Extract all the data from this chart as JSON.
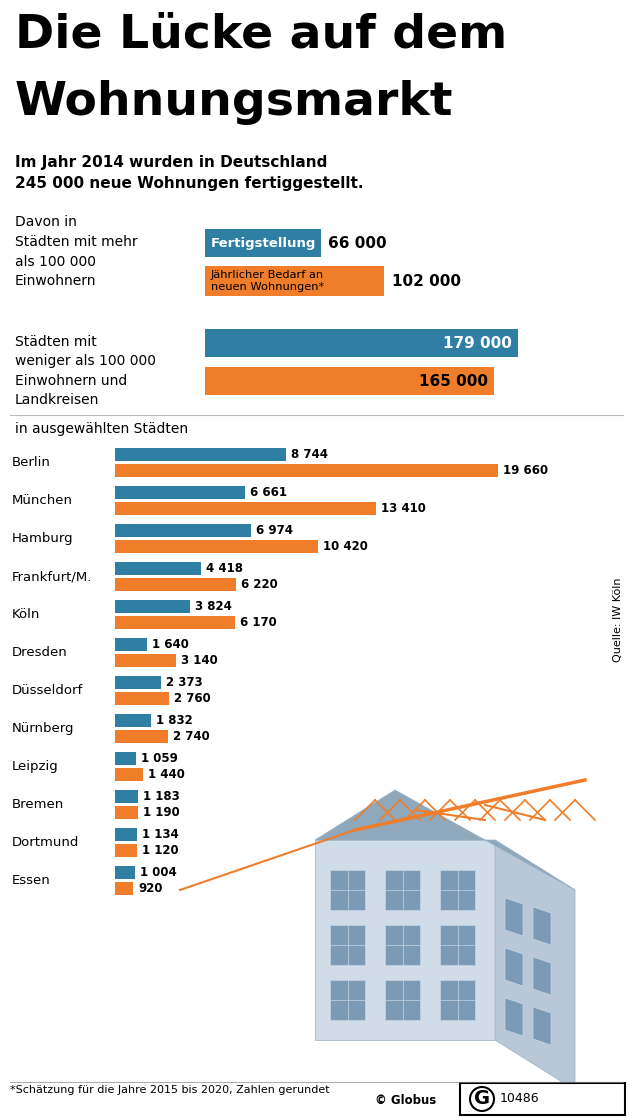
{
  "title_line1": "Die Lücke auf dem",
  "title_line2": "Wohnungsmarkt",
  "subtitle": "Im Jahr 2014 wurden in Deutschland\n245 000 neue Wohnungen fertiggestellt.",
  "davon_in": "Davon in",
  "in_staedte": "in ausgewählten Städten",
  "color_blue": "#2e7fa3",
  "color_orange": "#f07d2a",
  "color_white": "#ffffff",
  "color_bg": "#ffffff",
  "color_black": "#1a1a1a",
  "color_gray": "#888888",
  "color_light_gray": "#cccccc",
  "label_fertigstellung": "Fertigstellung",
  "label_bedarf": "Jährlicher Bedarf an\nneuen Wohnungen*",
  "group1_label": "Städten mit mehr\nals 100 000\nEinwohnern",
  "group1_blue": 66000,
  "group1_blue_text": "66 000",
  "group1_orange": 102000,
  "group1_orange_text": "102 000",
  "group2_label": "Städten mit\nweniger als 100 000\nEinwohnern und\nLandkreisen",
  "group2_blue": 179000,
  "group2_blue_text": "179 000",
  "group2_orange": 165000,
  "group2_orange_text": "165 000",
  "max_group": 200000,
  "cities": [
    "Berlin",
    "München",
    "Hamburg",
    "Frankfurt/M.",
    "Köln",
    "Dresden",
    "Düsseldorf",
    "Nürnberg",
    "Leipzig",
    "Bremen",
    "Dortmund",
    "Essen"
  ],
  "city_blue": [
    8744,
    6661,
    6974,
    4418,
    3824,
    1640,
    2373,
    1832,
    1059,
    1183,
    1134,
    1004
  ],
  "city_orange": [
    19660,
    13410,
    10420,
    6220,
    6170,
    3140,
    2760,
    2740,
    1440,
    1190,
    1120,
    920
  ],
  "city_blue_text": [
    "8 744",
    "6 661",
    "6 974",
    "4 418",
    "3 824",
    "1 640",
    "2 373",
    "1 832",
    "1 059",
    "1 183",
    "1 134",
    "1 004"
  ],
  "city_orange_text": [
    "19 660",
    "13 410",
    "10 420",
    "6 220",
    "6 170",
    "3 140",
    "2 760",
    "2 740",
    "1 440",
    "1 190",
    "1 120",
    "920"
  ],
  "max_city": 20000,
  "footnote": "*Schätzung für die Jahre 2015 bis 2020, Zahlen gerundet",
  "source": "© Globus",
  "number": "10486",
  "quellen_text": "Quelle: IW Köln"
}
